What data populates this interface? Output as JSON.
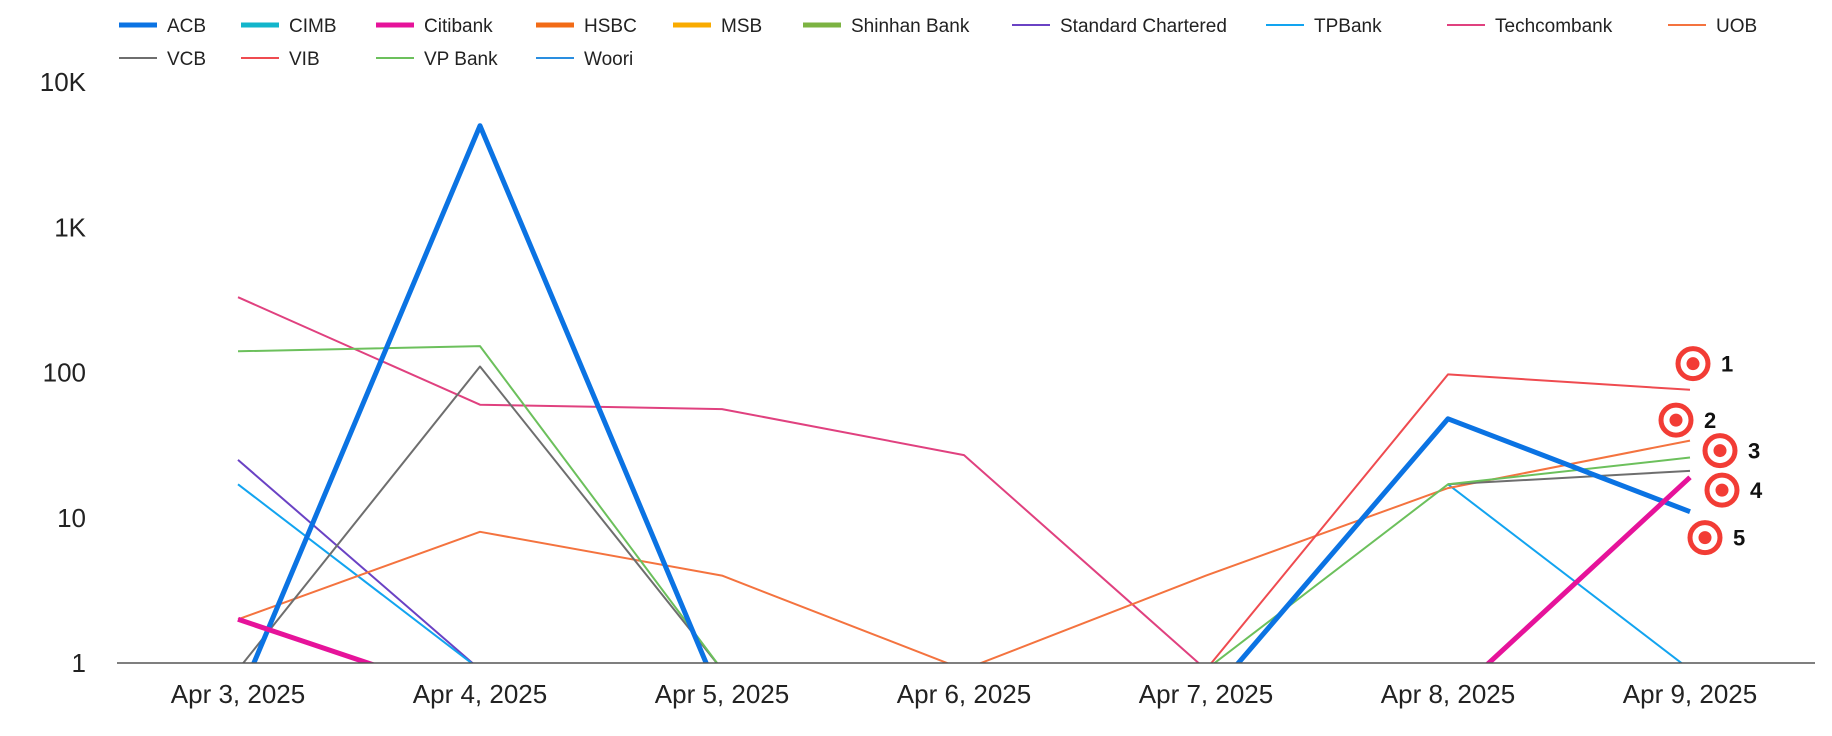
{
  "chart_data": {
    "type": "line",
    "title": "",
    "xlabel": "",
    "ylabel": "",
    "yscale": "log",
    "ylim": [
      1,
      10000
    ],
    "grid": false,
    "legend_position": "top",
    "categories": [
      "Apr 3, 2025",
      "Apr 4, 2025",
      "Apr 5, 2025",
      "Apr 6, 2025",
      "Apr 7, 2025",
      "Apr 8, 2025",
      "Apr 9, 2025"
    ],
    "yticks": [
      {
        "value": 1,
        "label": "1"
      },
      {
        "value": 10,
        "label": "10"
      },
      {
        "value": 100,
        "label": "100"
      },
      {
        "value": 1000,
        "label": "1K"
      },
      {
        "value": 10000,
        "label": "10K"
      }
    ],
    "series": [
      {
        "name": "ACB",
        "color": "#0b73e3",
        "width": 5,
        "values": [
          0.55,
          5000,
          0.55,
          null,
          0.55,
          48,
          11
        ]
      },
      {
        "name": "CIMB",
        "color": "#12b5cb",
        "width": 5,
        "values": [
          null,
          null,
          null,
          null,
          null,
          null,
          null
        ]
      },
      {
        "name": "Citibank",
        "color": "#e6139a",
        "width": 5,
        "values": [
          2,
          0.55,
          null,
          null,
          null,
          0.55,
          19
        ]
      },
      {
        "name": "HSBC",
        "color": "#f26b16",
        "width": 5,
        "values": [
          null,
          null,
          null,
          null,
          null,
          null,
          null
        ]
      },
      {
        "name": "MSB",
        "color": "#f9ab00",
        "width": 5,
        "values": [
          null,
          null,
          null,
          null,
          null,
          null,
          null
        ]
      },
      {
        "name": "Shinhan Bank",
        "color": "#7cb342",
        "width": 5,
        "values": [
          null,
          null,
          null,
          null,
          null,
          null,
          null
        ]
      },
      {
        "name": "Standard Chartered",
        "color": "#6a42c4",
        "width": 2,
        "values": [
          25,
          0.9,
          null,
          null,
          null,
          null,
          null
        ]
      },
      {
        "name": "TPBank",
        "color": "#12a4f0",
        "width": 2,
        "values": [
          17,
          0.9,
          null,
          null,
          null,
          17,
          0.9
        ]
      },
      {
        "name": "Techcombank",
        "color": "#e0417f",
        "width": 2,
        "values": [
          330,
          60,
          56,
          27,
          0.9,
          null,
          null
        ]
      },
      {
        "name": "UOB",
        "color": "#f4733f",
        "width": 2,
        "values": [
          2,
          8,
          4,
          0.9,
          4,
          16,
          34
        ]
      },
      {
        "name": "VCB",
        "color": "#6e6e6e",
        "width": 2,
        "values": [
          0.9,
          110,
          0.9,
          null,
          null,
          17,
          21
        ]
      },
      {
        "name": "VIB",
        "color": "#ef4b50",
        "width": 2,
        "values": [
          null,
          null,
          null,
          null,
          0.9,
          97,
          76
        ]
      },
      {
        "name": "VP Bank",
        "color": "#6cc05c",
        "width": 2,
        "values": [
          140,
          152,
          0.9,
          null,
          0.9,
          17,
          26
        ]
      },
      {
        "name": "Woori",
        "color": "#2a8ee0",
        "width": 2,
        "values": [
          null,
          null,
          null,
          null,
          null,
          null,
          null
        ]
      }
    ],
    "markers": [
      {
        "label": "1",
        "value": 115
      },
      {
        "label": "2",
        "value": 47
      },
      {
        "label": "3",
        "value": 29
      },
      {
        "label": "4",
        "value": 15.5
      },
      {
        "label": "5",
        "value": 7.3
      }
    ],
    "marker_color": "#f23c35"
  }
}
